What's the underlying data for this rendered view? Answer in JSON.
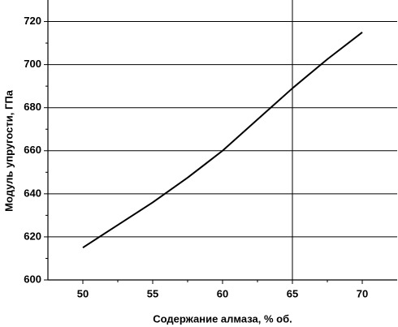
{
  "chart_data": {
    "type": "line",
    "x_label": "Содержание алмаза, % об.",
    "y_label": "Модуль упругости, ГПа",
    "x": [
      50,
      52.5,
      55,
      57.5,
      60,
      62.5,
      65,
      67.5,
      70
    ],
    "series": [
      {
        "color": "#000000",
        "values": [
          615,
          625.5,
          636,
          647.5,
          660,
          674.5,
          689,
          702.5,
          715
        ]
      }
    ],
    "xlim": [
      47.5,
      72.5
    ],
    "xticks": [
      50,
      55,
      60,
      65,
      70
    ],
    "ylim": [
      600,
      730
    ],
    "yticks": [
      600,
      620,
      640,
      660,
      680,
      700,
      720
    ],
    "grid": true,
    "xgrid_ticks": [
      65
    ]
  }
}
